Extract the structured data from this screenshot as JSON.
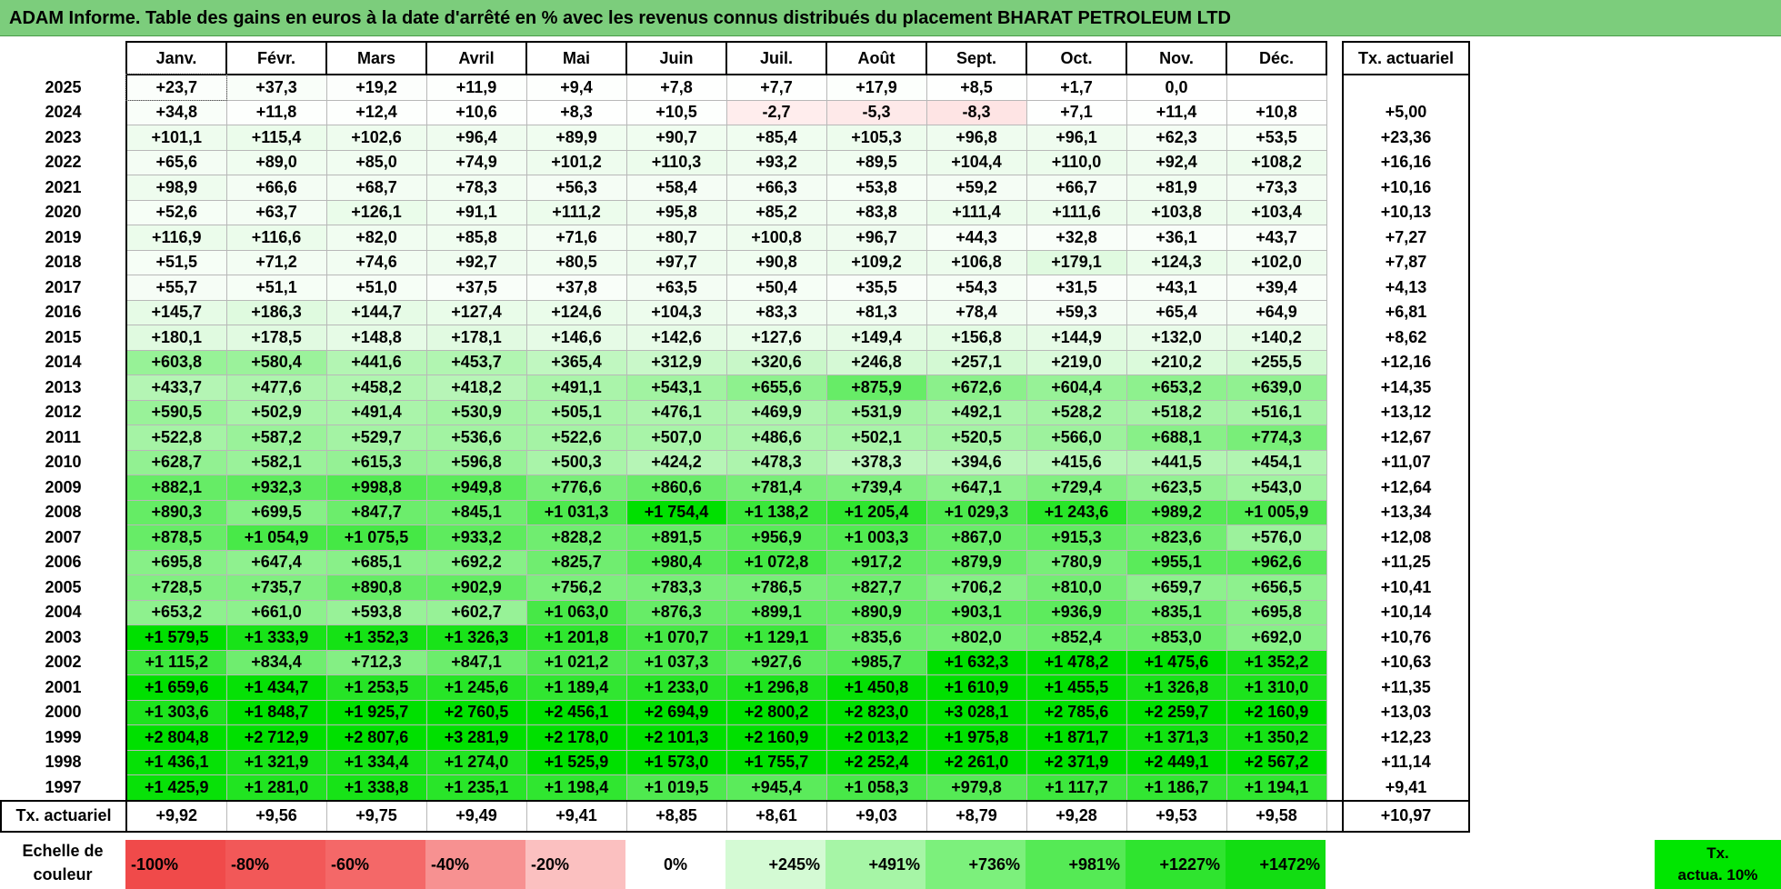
{
  "title": "ADAM Informe. Table des gains en euros à la date d'arrêté en % avec les revenus connus distribués du placement BHARAT PETROLEUM LTD",
  "months": [
    "Janv.",
    "Févr.",
    "Mars",
    "Avril",
    "Mai",
    "Juin",
    "Juil.",
    "Août",
    "Sept.",
    "Oct.",
    "Nov.",
    "Déc."
  ],
  "rate_header": "Tx. actuariel",
  "rows": [
    {
      "year": "2025",
      "values": [
        "+23,7",
        "+37,3",
        "+19,2",
        "+11,9",
        "+9,4",
        "+7,8",
        "+7,7",
        "+17,9",
        "+8,5",
        "+1,7",
        "0,0",
        ""
      ],
      "rate": ""
    },
    {
      "year": "2024",
      "values": [
        "+34,8",
        "+11,8",
        "+12,4",
        "+10,6",
        "+8,3",
        "+10,5",
        "-2,7",
        "-5,3",
        "-8,3",
        "+7,1",
        "+11,4",
        "+10,8"
      ],
      "rate": "+5,00"
    },
    {
      "year": "2023",
      "values": [
        "+101,1",
        "+115,4",
        "+102,6",
        "+96,4",
        "+89,9",
        "+90,7",
        "+85,4",
        "+105,3",
        "+96,8",
        "+96,1",
        "+62,3",
        "+53,5"
      ],
      "rate": "+23,36"
    },
    {
      "year": "2022",
      "values": [
        "+65,6",
        "+89,0",
        "+85,0",
        "+74,9",
        "+101,2",
        "+110,3",
        "+93,2",
        "+89,5",
        "+104,4",
        "+110,0",
        "+92,4",
        "+108,2"
      ],
      "rate": "+16,16"
    },
    {
      "year": "2021",
      "values": [
        "+98,9",
        "+66,6",
        "+68,7",
        "+78,3",
        "+56,3",
        "+58,4",
        "+66,3",
        "+53,8",
        "+59,2",
        "+66,7",
        "+81,9",
        "+73,3"
      ],
      "rate": "+10,16"
    },
    {
      "year": "2020",
      "values": [
        "+52,6",
        "+63,7",
        "+126,1",
        "+91,1",
        "+111,2",
        "+95,8",
        "+85,2",
        "+83,8",
        "+111,4",
        "+111,6",
        "+103,8",
        "+103,4"
      ],
      "rate": "+10,13"
    },
    {
      "year": "2019",
      "values": [
        "+116,9",
        "+116,6",
        "+82,0",
        "+85,8",
        "+71,6",
        "+80,7",
        "+100,8",
        "+96,7",
        "+44,3",
        "+32,8",
        "+36,1",
        "+43,7"
      ],
      "rate": "+7,27"
    },
    {
      "year": "2018",
      "values": [
        "+51,5",
        "+71,2",
        "+74,6",
        "+92,7",
        "+80,5",
        "+97,7",
        "+90,8",
        "+109,2",
        "+106,8",
        "+179,1",
        "+124,3",
        "+102,0"
      ],
      "rate": "+7,87"
    },
    {
      "year": "2017",
      "values": [
        "+55,7",
        "+51,1",
        "+51,0",
        "+37,5",
        "+37,8",
        "+63,5",
        "+50,4",
        "+35,5",
        "+54,3",
        "+31,5",
        "+43,1",
        "+39,4"
      ],
      "rate": "+4,13"
    },
    {
      "year": "2016",
      "values": [
        "+145,7",
        "+186,3",
        "+144,7",
        "+127,4",
        "+124,6",
        "+104,3",
        "+83,3",
        "+81,3",
        "+78,4",
        "+59,3",
        "+65,4",
        "+64,9"
      ],
      "rate": "+6,81"
    },
    {
      "year": "2015",
      "values": [
        "+180,1",
        "+178,5",
        "+148,8",
        "+178,1",
        "+146,6",
        "+142,6",
        "+127,6",
        "+149,4",
        "+156,8",
        "+144,9",
        "+132,0",
        "+140,2"
      ],
      "rate": "+8,62"
    },
    {
      "year": "2014",
      "values": [
        "+603,8",
        "+580,4",
        "+441,6",
        "+453,7",
        "+365,4",
        "+312,9",
        "+320,6",
        "+246,8",
        "+257,1",
        "+219,0",
        "+210,2",
        "+255,5"
      ],
      "rate": "+12,16"
    },
    {
      "year": "2013",
      "values": [
        "+433,7",
        "+477,6",
        "+458,2",
        "+418,2",
        "+491,1",
        "+543,1",
        "+655,6",
        "+875,9",
        "+672,6",
        "+604,4",
        "+653,2",
        "+639,0"
      ],
      "rate": "+14,35"
    },
    {
      "year": "2012",
      "values": [
        "+590,5",
        "+502,9",
        "+491,4",
        "+530,9",
        "+505,1",
        "+476,1",
        "+469,9",
        "+531,9",
        "+492,1",
        "+528,2",
        "+518,2",
        "+516,1"
      ],
      "rate": "+13,12"
    },
    {
      "year": "2011",
      "values": [
        "+522,8",
        "+587,2",
        "+529,7",
        "+536,6",
        "+522,6",
        "+507,0",
        "+486,6",
        "+502,1",
        "+520,5",
        "+566,0",
        "+688,1",
        "+774,3"
      ],
      "rate": "+12,67"
    },
    {
      "year": "2010",
      "values": [
        "+628,7",
        "+582,1",
        "+615,3",
        "+596,8",
        "+500,3",
        "+424,2",
        "+478,3",
        "+378,3",
        "+394,6",
        "+415,6",
        "+441,5",
        "+454,1"
      ],
      "rate": "+11,07"
    },
    {
      "year": "2009",
      "values": [
        "+882,1",
        "+932,3",
        "+998,8",
        "+949,8",
        "+776,6",
        "+860,6",
        "+781,4",
        "+739,4",
        "+647,1",
        "+729,4",
        "+623,5",
        "+543,0"
      ],
      "rate": "+12,64"
    },
    {
      "year": "2008",
      "values": [
        "+890,3",
        "+699,5",
        "+847,7",
        "+845,1",
        "+1 031,3",
        "+1 754,4",
        "+1 138,2",
        "+1 205,4",
        "+1 029,3",
        "+1 243,6",
        "+989,2",
        "+1 005,9"
      ],
      "rate": "+13,34"
    },
    {
      "year": "2007",
      "values": [
        "+878,5",
        "+1 054,9",
        "+1 075,5",
        "+933,2",
        "+828,2",
        "+891,5",
        "+956,9",
        "+1 003,3",
        "+867,0",
        "+915,3",
        "+823,6",
        "+576,0"
      ],
      "rate": "+12,08"
    },
    {
      "year": "2006",
      "values": [
        "+695,8",
        "+647,4",
        "+685,1",
        "+692,2",
        "+825,7",
        "+980,4",
        "+1 072,8",
        "+917,2",
        "+879,9",
        "+780,9",
        "+955,1",
        "+962,6"
      ],
      "rate": "+11,25"
    },
    {
      "year": "2005",
      "values": [
        "+728,5",
        "+735,7",
        "+890,8",
        "+902,9",
        "+756,2",
        "+783,3",
        "+786,5",
        "+827,7",
        "+706,2",
        "+810,0",
        "+659,7",
        "+656,5"
      ],
      "rate": "+10,41"
    },
    {
      "year": "2004",
      "values": [
        "+653,2",
        "+661,0",
        "+593,8",
        "+602,7",
        "+1 063,0",
        "+876,3",
        "+899,1",
        "+890,9",
        "+903,1",
        "+936,9",
        "+835,1",
        "+695,8"
      ],
      "rate": "+10,14"
    },
    {
      "year": "2003",
      "values": [
        "+1 579,5",
        "+1 333,9",
        "+1 352,3",
        "+1 326,3",
        "+1 201,8",
        "+1 070,7",
        "+1 129,1",
        "+835,6",
        "+802,0",
        "+852,4",
        "+853,0",
        "+692,0"
      ],
      "rate": "+10,76"
    },
    {
      "year": "2002",
      "values": [
        "+1 115,2",
        "+834,4",
        "+712,3",
        "+847,1",
        "+1 021,2",
        "+1 037,3",
        "+927,6",
        "+985,7",
        "+1 632,3",
        "+1 478,2",
        "+1 475,6",
        "+1 352,2"
      ],
      "rate": "+10,63"
    },
    {
      "year": "2001",
      "values": [
        "+1 659,6",
        "+1 434,7",
        "+1 253,5",
        "+1 245,6",
        "+1 189,4",
        "+1 233,0",
        "+1 296,8",
        "+1 450,8",
        "+1 610,9",
        "+1 455,5",
        "+1 326,8",
        "+1 310,0"
      ],
      "rate": "+11,35"
    },
    {
      "year": "2000",
      "values": [
        "+1 303,6",
        "+1 848,7",
        "+1 925,7",
        "+2 760,5",
        "+2 456,1",
        "+2 694,9",
        "+2 800,2",
        "+2 823,0",
        "+3 028,1",
        "+2 785,6",
        "+2 259,7",
        "+2 160,9"
      ],
      "rate": "+13,03"
    },
    {
      "year": "1999",
      "values": [
        "+2 804,8",
        "+2 712,9",
        "+2 807,6",
        "+3 281,9",
        "+2 178,0",
        "+2 101,3",
        "+2 160,9",
        "+2 013,2",
        "+1 975,8",
        "+1 871,7",
        "+1 371,3",
        "+1 350,2"
      ],
      "rate": "+12,23"
    },
    {
      "year": "1998",
      "values": [
        "+1 436,1",
        "+1 321,9",
        "+1 334,4",
        "+1 274,0",
        "+1 525,9",
        "+1 573,0",
        "+1 755,7",
        "+2 252,4",
        "+2 261,0",
        "+2 371,9",
        "+2 449,1",
        "+2 567,2"
      ],
      "rate": "+11,14"
    },
    {
      "year": "1997",
      "values": [
        "+1 425,9",
        "+1 281,0",
        "+1 338,8",
        "+1 235,1",
        "+1 198,4",
        "+1 019,5",
        "+945,4",
        "+1 058,3",
        "+979,8",
        "+1 117,7",
        "+1 186,7",
        "+1 194,1"
      ],
      "rate": "+9,41"
    }
  ],
  "footer": {
    "label": "Tx. actuariel",
    "values": [
      "+9,92",
      "+9,56",
      "+9,75",
      "+9,49",
      "+9,41",
      "+8,85",
      "+8,61",
      "+9,03",
      "+8,79",
      "+9,28",
      "+9,53",
      "+9,58"
    ],
    "rate": "+10,97"
  },
  "scale": {
    "label_line1": "Echelle de",
    "label_line2": "couleur",
    "items": [
      {
        "label": "-100%",
        "color": "#f04a4a",
        "align": "left"
      },
      {
        "label": "-80%",
        "color": "#f25858",
        "align": "left"
      },
      {
        "label": "-60%",
        "color": "#f46868",
        "align": "left"
      },
      {
        "label": "-40%",
        "color": "#f79191",
        "align": "left"
      },
      {
        "label": "-20%",
        "color": "#fbc0c0",
        "align": "left"
      },
      {
        "label": "0%",
        "color": "#ffffff",
        "align": "center"
      },
      {
        "label": "+245%",
        "color": "#d4fad4",
        "align": "right"
      },
      {
        "label": "+491%",
        "color": "#a6f5a6",
        "align": "right"
      },
      {
        "label": "+736%",
        "color": "#7cf07c",
        "align": "right"
      },
      {
        "label": "+981%",
        "color": "#55ea55",
        "align": "right"
      },
      {
        "label": "+1227%",
        "color": "#2fe42f",
        "align": "right"
      },
      {
        "label": "+1472%",
        "color": "#12dd12",
        "align": "right"
      }
    ],
    "last_line1": "Tx.",
    "last_line2": "actua. 10%",
    "last_color": "#00e600"
  }
}
